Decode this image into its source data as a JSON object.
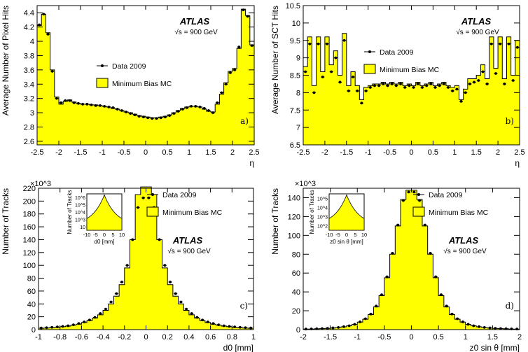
{
  "colors": {
    "mc_fill": "#ffff00",
    "data_marker": "#000000"
  },
  "atlas_label": "ATLAS",
  "energy_label": "s = 900 GeV",
  "legend": {
    "data": "Data 2009",
    "mc": "Minimum Bias MC"
  },
  "chart_data": [
    {
      "type": "bar",
      "panel_label": "a)",
      "xlabel": "η",
      "ylabel": "Average Number of Pixel Hits",
      "xlim": [
        -2.5,
        2.5
      ],
      "ylim": [
        2.55,
        4.5
      ],
      "xticks": [
        "-2.5",
        "-2",
        "-1.5",
        "-1",
        "-0.5",
        "0",
        "0.5",
        "1",
        "1.5",
        "2",
        "2.5"
      ],
      "yticks": [
        "2.6",
        "2.8",
        "3",
        "3.2",
        "3.4",
        "3.6",
        "3.8",
        "4",
        "4.2",
        "4.4"
      ],
      "x": [
        -2.45,
        -2.35,
        -2.25,
        -2.15,
        -2.05,
        -1.95,
        -1.85,
        -1.75,
        -1.65,
        -1.55,
        -1.45,
        -1.35,
        -1.25,
        -1.15,
        -1.05,
        -0.95,
        -0.85,
        -0.75,
        -0.65,
        -0.55,
        -0.45,
        -0.35,
        -0.25,
        -0.15,
        -0.05,
        0.05,
        0.15,
        0.25,
        0.35,
        0.45,
        0.55,
        0.65,
        0.75,
        0.85,
        0.95,
        1.05,
        1.15,
        1.25,
        1.35,
        1.45,
        1.55,
        1.65,
        1.75,
        1.85,
        1.95,
        2.05,
        2.15,
        2.25,
        2.35,
        2.45
      ],
      "series": [
        {
          "name": "Minimum Bias MC",
          "values": [
            4.22,
            4.38,
            4.12,
            3.6,
            3.22,
            3.12,
            3.16,
            3.18,
            3.15,
            3.13,
            3.12,
            3.12,
            3.11,
            3.11,
            3.1,
            3.09,
            3.08,
            3.06,
            3.05,
            3.03,
            3.01,
            3.0,
            2.98,
            2.96,
            2.95,
            2.94,
            2.93,
            2.93,
            2.94,
            2.95,
            2.97,
            3.0,
            3.03,
            3.06,
            3.08,
            3.09,
            3.09,
            3.08,
            3.05,
            3.02,
            3.01,
            3.12,
            3.26,
            3.42,
            3.58,
            3.62,
            3.9,
            4.45,
            4.36,
            3.95
          ]
        },
        {
          "name": "Data 2009",
          "values": [
            4.23,
            4.38,
            4.1,
            3.58,
            3.2,
            3.14,
            3.17,
            3.17,
            3.14,
            3.13,
            3.12,
            3.12,
            3.11,
            3.1,
            3.1,
            3.09,
            3.08,
            3.07,
            3.05,
            3.03,
            3.01,
            2.99,
            2.97,
            2.95,
            2.94,
            2.93,
            2.92,
            2.92,
            2.93,
            2.94,
            2.96,
            2.99,
            3.02,
            3.05,
            3.07,
            3.09,
            3.09,
            3.08,
            3.06,
            3.03,
            3.0,
            3.14,
            3.28,
            3.4,
            3.56,
            3.6,
            3.92,
            4.44,
            4.35,
            3.94
          ]
        }
      ]
    },
    {
      "type": "bar",
      "panel_label": "b)",
      "xlabel": "η",
      "ylabel": "Average Number of SCT Hits",
      "xlim": [
        -2.5,
        2.5
      ],
      "ylim": [
        6.5,
        10.5
      ],
      "xticks": [
        "-2.5",
        "-2",
        "-1.5",
        "-1",
        "-0.5",
        "0",
        "0.5",
        "1",
        "1.5",
        "2",
        "2.5"
      ],
      "yticks": [
        "6.5",
        "7",
        "7.5",
        "8",
        "8.5",
        "9",
        "9.5",
        "10",
        "10.5"
      ],
      "x": [
        -2.45,
        -2.35,
        -2.25,
        -2.15,
        -2.05,
        -1.95,
        -1.85,
        -1.75,
        -1.65,
        -1.55,
        -1.45,
        -1.35,
        -1.25,
        -1.15,
        -1.05,
        -0.95,
        -0.85,
        -0.75,
        -0.65,
        -0.55,
        -0.45,
        -0.35,
        -0.25,
        -0.15,
        -0.05,
        0.05,
        0.15,
        0.25,
        0.35,
        0.45,
        0.55,
        0.65,
        0.75,
        0.85,
        0.95,
        1.05,
        1.15,
        1.25,
        1.35,
        1.45,
        1.55,
        1.65,
        1.75,
        1.85,
        1.95,
        2.05,
        2.15,
        2.25,
        2.35,
        2.45
      ],
      "series": [
        {
          "name": "Minimum Bias MC",
          "values": [
            8.75,
            9.6,
            8.2,
            9.6,
            8.6,
            9.6,
            8.8,
            9.2,
            8.5,
            9.7,
            8.2,
            8.6,
            8.2,
            7.8,
            8.15,
            8.2,
            8.25,
            8.25,
            8.3,
            8.25,
            8.3,
            8.25,
            8.3,
            8.2,
            8.25,
            8.2,
            8.3,
            8.2,
            8.25,
            8.3,
            8.2,
            8.25,
            8.3,
            8.2,
            8.15,
            8.2,
            7.8,
            8.1,
            8.4,
            8.4,
            8.5,
            8.8,
            8.4,
            9.6,
            8.7,
            9.6,
            8.4,
            9.6,
            8.5,
            9.5
          ]
        },
        {
          "name": "Data 2009",
          "values": [
            8.6,
            9.4,
            8.0,
            9.4,
            8.45,
            9.4,
            8.6,
            9.0,
            8.3,
            9.5,
            8.05,
            8.45,
            8.05,
            7.7,
            8.05,
            8.15,
            8.2,
            8.2,
            8.25,
            8.2,
            8.25,
            8.2,
            8.25,
            8.15,
            8.2,
            8.15,
            8.25,
            8.15,
            8.2,
            8.25,
            8.15,
            8.2,
            8.25,
            8.15,
            8.05,
            8.1,
            7.75,
            8.0,
            8.25,
            8.3,
            8.35,
            8.6,
            8.25,
            9.4,
            8.55,
            9.4,
            8.25,
            9.4,
            8.35,
            9.3
          ]
        }
      ]
    },
    {
      "type": "bar",
      "panel_label": "c)",
      "xlabel": "d0 [mm]",
      "ylabel": "Number of Tracks",
      "y_multiplier": "×10^3",
      "xlim": [
        -1,
        1
      ],
      "ylim": [
        0,
        220
      ],
      "xticks": [
        "-1",
        "-0.8",
        "-0.6",
        "-0.4",
        "-0.2",
        "0",
        "0.2",
        "0.4",
        "0.6",
        "0.8",
        "1"
      ],
      "yticks": [
        "0",
        "20",
        "40",
        "60",
        "80",
        "100",
        "120",
        "140",
        "160",
        "180",
        "200",
        "220"
      ],
      "x": [
        -0.975,
        -0.925,
        -0.875,
        -0.825,
        -0.775,
        -0.725,
        -0.675,
        -0.625,
        -0.575,
        -0.525,
        -0.475,
        -0.425,
        -0.375,
        -0.325,
        -0.275,
        -0.225,
        -0.175,
        -0.125,
        -0.075,
        -0.025,
        0.025,
        0.075,
        0.125,
        0.175,
        0.225,
        0.275,
        0.325,
        0.375,
        0.425,
        0.475,
        0.525,
        0.575,
        0.625,
        0.675,
        0.725,
        0.775,
        0.825,
        0.875,
        0.925,
        0.975
      ],
      "series": [
        {
          "name": "Minimum Bias MC",
          "values": [
            2,
            2.5,
            3,
            3.5,
            4.5,
            5.5,
            7,
            8.5,
            11,
            14,
            18,
            23,
            30,
            40,
            52,
            70,
            96,
            140,
            210,
            222,
            222,
            210,
            140,
            96,
            70,
            52,
            40,
            30,
            23,
            18,
            14,
            11,
            8.5,
            7,
            5.5,
            4.5,
            3.5,
            3,
            2.5,
            2
          ]
        },
        {
          "name": "Data 2009",
          "values": [
            2.5,
            3,
            3.5,
            4.2,
            5,
            6,
            7.5,
            9.5,
            12,
            15,
            19,
            25,
            32,
            43,
            56,
            74,
            100,
            140,
            190,
            205,
            205,
            190,
            140,
            100,
            74,
            56,
            43,
            32,
            25,
            19,
            15,
            12,
            9.5,
            7.5,
            6,
            5,
            4.2,
            3.5,
            3,
            2.5
          ]
        }
      ],
      "inset": {
        "type": "line",
        "xlabel": "d0 [mm]",
        "ylabel": "Number of Tracks",
        "log_y": true,
        "xticks": [
          "-10",
          "-5",
          "0",
          "5",
          "10"
        ],
        "yticks": [
          "10",
          "10^3",
          "10^4",
          "10^5",
          "10^6"
        ]
      }
    },
    {
      "type": "bar",
      "panel_label": "d)",
      "xlabel": "z0 sin θ [mm]",
      "ylabel": "Number of Tracks",
      "y_multiplier": "×10^3",
      "xlim": [
        -2,
        2
      ],
      "ylim": [
        0,
        150
      ],
      "xticks": [
        "-2",
        "-1.5",
        "-1",
        "-0.5",
        "0",
        "0.5",
        "1",
        "1.5",
        "2"
      ],
      "yticks": [
        "0",
        "20",
        "40",
        "60",
        "80",
        "100",
        "120",
        "140"
      ],
      "x": [
        -1.95,
        -1.85,
        -1.75,
        -1.65,
        -1.55,
        -1.45,
        -1.35,
        -1.25,
        -1.15,
        -1.05,
        -0.95,
        -0.85,
        -0.75,
        -0.65,
        -0.55,
        -0.45,
        -0.35,
        -0.25,
        -0.15,
        -0.05,
        0.05,
        0.15,
        0.25,
        0.35,
        0.45,
        0.55,
        0.65,
        0.75,
        0.85,
        0.95,
        1.05,
        1.15,
        1.25,
        1.35,
        1.45,
        1.55,
        1.65,
        1.75,
        1.85,
        1.95
      ],
      "series": [
        {
          "name": "Minimum Bias MC",
          "values": [
            0.5,
            0.6,
            0.8,
            1,
            1.3,
            1.7,
            2.2,
            3,
            4,
            5.5,
            8,
            11,
            16,
            24,
            36,
            55,
            80,
            110,
            138,
            148,
            148,
            138,
            110,
            80,
            55,
            36,
            24,
            16,
            11,
            8,
            5.5,
            4,
            3,
            2.2,
            1.7,
            1.3,
            1,
            0.8,
            0.6,
            0.5
          ]
        },
        {
          "name": "Data 2009",
          "values": [
            0.6,
            0.7,
            0.9,
            1.1,
            1.4,
            1.8,
            2.3,
            3.1,
            4.1,
            5.6,
            8.2,
            11.5,
            16.5,
            25,
            37,
            56,
            81,
            111,
            137,
            146,
            146,
            137,
            111,
            81,
            56,
            37,
            25,
            16.5,
            11.5,
            8.2,
            5.6,
            4.1,
            3.1,
            2.3,
            1.8,
            1.4,
            1.1,
            0.9,
            0.7,
            0.6
          ]
        }
      ],
      "inset": {
        "type": "line",
        "xlabel": "z0 sin θ [mm]",
        "ylabel": "Number of Tracks",
        "log_y": true,
        "xticks": [
          "-10",
          "-5",
          "0",
          "5",
          "10"
        ],
        "yticks": [
          "10^2",
          "10^3",
          "10^4",
          "10^5"
        ]
      }
    }
  ]
}
